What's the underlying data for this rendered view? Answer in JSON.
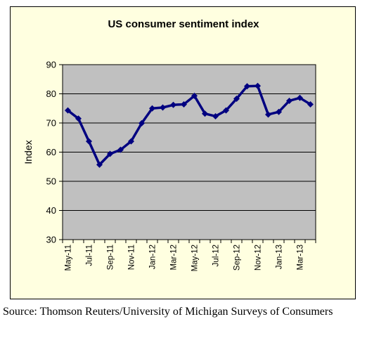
{
  "chart_data": {
    "type": "line",
    "title": "US consumer sentiment index",
    "xlabel": "",
    "ylabel": "Index",
    "ylim": [
      30,
      90
    ],
    "yticks": [
      30,
      40,
      50,
      60,
      70,
      80,
      90
    ],
    "grid": true,
    "categories": [
      "May-11",
      "Jun-11",
      "Jul-11",
      "Aug-11",
      "Sep-11",
      "Oct-11",
      "Nov-11",
      "Dec-11",
      "Jan-12",
      "Feb-12",
      "Mar-12",
      "Apr-12",
      "May-12",
      "Jun-12",
      "Jul-12",
      "Aug-12",
      "Sep-12",
      "Oct-12",
      "Nov-12",
      "Dec-12",
      "Jan-13",
      "Feb-13",
      "Mar-13",
      "Apr-13"
    ],
    "xtick_labels": [
      "May-11",
      "",
      "Jul-11",
      "",
      "Sep-11",
      "",
      "Nov-11",
      "",
      "Jan-12",
      "",
      "Mar-12",
      "",
      "May-12",
      "",
      "Jul-12",
      "",
      "Sep-12",
      "",
      "Nov-12",
      "",
      "Jan-13",
      "",
      "Mar-13",
      ""
    ],
    "series": [
      {
        "values": [
          74.3,
          71.5,
          63.7,
          55.7,
          59.4,
          60.8,
          63.7,
          69.9,
          75.0,
          75.3,
          76.2,
          76.4,
          79.3,
          73.2,
          72.3,
          74.3,
          78.3,
          82.6,
          82.7,
          72.9,
          73.8,
          77.6,
          78.6,
          76.4
        ]
      }
    ],
    "colors": {
      "line": "#000080",
      "plot_bg": "#c0c0c0",
      "frame_bg": "#ffffe0"
    }
  },
  "source_text": "Source: Thomson Reuters/University of Michigan Surveys of Consumers"
}
